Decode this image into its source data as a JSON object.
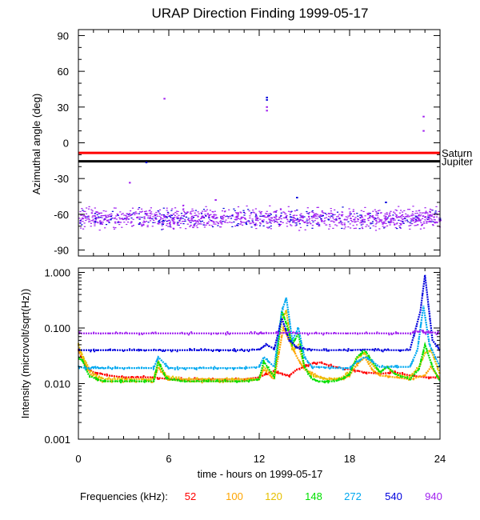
{
  "chart_data": [
    {
      "type": "scatter",
      "panel": "top",
      "title": "URAP Direction Finding  1999-05-17",
      "ylabel": "Azimuthal angle (deg)",
      "xlim": [
        0,
        24
      ],
      "ylim": [
        -95,
        95
      ],
      "ytick_labels": [
        "90",
        "60",
        "30",
        "0",
        "-30",
        "-60",
        "-90"
      ],
      "ytick_values": [
        90,
        60,
        30,
        0,
        -30,
        -60,
        -90
      ],
      "reference_lines": [
        {
          "name": "Saturn",
          "value": -8.5,
          "color": "#ff0000"
        },
        {
          "name": "Jupiter",
          "value": -15.5,
          "color": "#000000"
        }
      ],
      "band": {
        "center": -63,
        "spread": 5,
        "colors": [
          "#a020f0",
          "#0000dd"
        ]
      },
      "outliers": [
        {
          "x": 3.4,
          "y": -33.5,
          "color": "#a020f0"
        },
        {
          "x": 4.5,
          "y": -16.5,
          "color": "#0000dd"
        },
        {
          "x": 5.7,
          "y": 37,
          "color": "#a020f0"
        },
        {
          "x": 12.5,
          "y": 38,
          "color": "#0000dd"
        },
        {
          "x": 12.5,
          "y": 36,
          "color": "#0000dd"
        },
        {
          "x": 12.5,
          "y": 30,
          "color": "#a020f0"
        },
        {
          "x": 12.5,
          "y": 27,
          "color": "#a020f0"
        },
        {
          "x": 22.9,
          "y": 22,
          "color": "#a020f0"
        },
        {
          "x": 22.9,
          "y": 10,
          "color": "#a020f0"
        },
        {
          "x": 14.5,
          "y": -46,
          "color": "#0000dd"
        },
        {
          "x": 9.1,
          "y": -48,
          "color": "#a020f0"
        },
        {
          "x": 20.4,
          "y": -50,
          "color": "#0000dd"
        }
      ]
    },
    {
      "type": "line",
      "panel": "bottom",
      "ylabel": "Intensity (microvolt/sqrt(Hz))",
      "xlabel": "time - hours on 1999-05-17",
      "yscale": "log",
      "xlim": [
        0,
        24
      ],
      "ylim": [
        0.001,
        1.2
      ],
      "xtick_labels": [
        "0",
        "6",
        "12",
        "18",
        "24"
      ],
      "xtick_values": [
        0,
        6,
        12,
        18,
        24
      ],
      "ytick_labels": [
        "1.000",
        "0.100",
        "0.010",
        "0.001"
      ],
      "ytick_values": [
        1.0,
        0.1,
        0.01,
        0.001
      ],
      "legend_label": "Frequencies (kHz):",
      "series": [
        {
          "name": "52",
          "color": "#ff0000",
          "x": [
            0,
            0.5,
            1,
            1.5,
            2,
            3,
            4,
            5,
            6,
            7,
            8,
            9,
            10,
            11,
            12,
            12.5,
            13,
            13.5,
            14,
            14.5,
            15,
            15.5,
            16,
            17,
            18,
            19,
            20,
            21,
            22,
            23,
            23.5,
            24
          ],
          "y": [
            0.04,
            0.02,
            0.016,
            0.015,
            0.014,
            0.013,
            0.013,
            0.013,
            0.012,
            0.012,
            0.012,
            0.012,
            0.012,
            0.012,
            0.013,
            0.015,
            0.017,
            0.015,
            0.014,
            0.018,
            0.02,
            0.023,
            0.024,
            0.02,
            0.018,
            0.016,
            0.015,
            0.016,
            0.014,
            0.013,
            0.013,
            0.013
          ]
        },
        {
          "name": "100",
          "color": "#ffa500",
          "x": [
            0,
            0.4,
            0.8,
            1.2,
            1.6,
            2,
            3,
            4,
            5,
            5.3,
            5.8,
            6,
            7,
            8,
            9,
            10,
            11,
            12,
            12.3,
            13,
            13.6,
            14,
            14.5,
            15,
            15.5,
            16,
            16.5,
            17,
            17.5,
            18,
            18.5,
            19,
            19.5,
            20,
            21,
            22,
            23,
            23.4,
            24
          ],
          "y": [
            0.04,
            0.025,
            0.015,
            0.012,
            0.011,
            0.011,
            0.011,
            0.011,
            0.011,
            0.02,
            0.013,
            0.012,
            0.011,
            0.011,
            0.011,
            0.011,
            0.011,
            0.012,
            0.018,
            0.012,
            0.1,
            0.06,
            0.03,
            0.018,
            0.015,
            0.013,
            0.012,
            0.012,
            0.012,
            0.014,
            0.022,
            0.03,
            0.018,
            0.014,
            0.013,
            0.012,
            0.014,
            0.02,
            0.012
          ]
        },
        {
          "name": "120",
          "color": "#e6c000",
          "x": [
            0,
            0.3,
            0.8,
            1.3,
            1.8,
            2.5,
            3,
            4,
            5,
            5.3,
            5.8,
            6,
            7,
            8,
            9,
            10,
            11,
            12,
            12.3,
            13,
            13.5,
            13.8,
            14.2,
            14.6,
            15,
            15.5,
            16,
            16.5,
            17,
            17.5,
            18,
            18.5,
            19,
            19.5,
            20,
            20.5,
            21,
            22,
            22.6,
            23,
            23.4,
            24
          ],
          "y": [
            0.05,
            0.03,
            0.017,
            0.013,
            0.012,
            0.012,
            0.012,
            0.012,
            0.012,
            0.025,
            0.014,
            0.013,
            0.012,
            0.012,
            0.012,
            0.012,
            0.012,
            0.012,
            0.02,
            0.014,
            0.15,
            0.2,
            0.04,
            0.05,
            0.02,
            0.014,
            0.013,
            0.012,
            0.012,
            0.013,
            0.016,
            0.03,
            0.035,
            0.022,
            0.016,
            0.02,
            0.015,
            0.013,
            0.02,
            0.035,
            0.04,
            0.015
          ]
        },
        {
          "name": "148",
          "color": "#00e000",
          "x": [
            0,
            0.3,
            0.7,
            1.2,
            1.7,
            2.5,
            3,
            4,
            5,
            5.3,
            5.8,
            6,
            7,
            8,
            9,
            10,
            11,
            12,
            12.3,
            13,
            13.5,
            13.8,
            14.2,
            14.6,
            15,
            15.5,
            16,
            16.5,
            17,
            17.5,
            18,
            18.5,
            19,
            19.5,
            20,
            20.5,
            21,
            22,
            22.6,
            23,
            23.5,
            24
          ],
          "y": [
            0.03,
            0.025,
            0.014,
            0.012,
            0.011,
            0.011,
            0.011,
            0.011,
            0.011,
            0.025,
            0.013,
            0.012,
            0.011,
            0.011,
            0.011,
            0.011,
            0.011,
            0.012,
            0.025,
            0.013,
            0.2,
            0.12,
            0.05,
            0.08,
            0.02,
            0.012,
            0.011,
            0.011,
            0.011,
            0.012,
            0.015,
            0.03,
            0.04,
            0.025,
            0.016,
            0.02,
            0.015,
            0.012,
            0.018,
            0.05,
            0.02,
            0.011
          ]
        },
        {
          "name": "272",
          "color": "#00a8f0",
          "x": [
            0,
            0.5,
            1,
            1.5,
            2,
            3,
            4,
            5,
            5.3,
            6,
            7,
            8,
            9,
            10,
            11,
            12,
            12.3,
            13,
            13.5,
            13.8,
            14.2,
            14.6,
            15,
            15.5,
            16,
            17,
            18,
            18.5,
            19,
            19.5,
            20,
            21,
            22,
            22.5,
            22.9,
            23.3,
            24
          ],
          "y": [
            0.02,
            0.019,
            0.019,
            0.019,
            0.019,
            0.019,
            0.019,
            0.019,
            0.03,
            0.019,
            0.019,
            0.019,
            0.019,
            0.019,
            0.019,
            0.02,
            0.03,
            0.02,
            0.2,
            0.35,
            0.06,
            0.1,
            0.03,
            0.02,
            0.02,
            0.019,
            0.019,
            0.025,
            0.03,
            0.025,
            0.02,
            0.02,
            0.02,
            0.04,
            0.25,
            0.05,
            0.02
          ]
        },
        {
          "name": "540",
          "color": "#0000dd",
          "x": [
            0,
            1,
            2,
            3,
            4,
            5,
            6,
            7,
            8,
            9,
            10,
            11,
            12,
            12.5,
            13,
            13.5,
            14,
            14.5,
            15,
            16,
            17,
            18,
            19,
            20,
            21,
            22,
            22.7,
            23,
            23.5,
            24
          ],
          "y": [
            0.04,
            0.04,
            0.04,
            0.04,
            0.04,
            0.04,
            0.04,
            0.04,
            0.04,
            0.04,
            0.04,
            0.04,
            0.041,
            0.05,
            0.042,
            0.15,
            0.06,
            0.045,
            0.042,
            0.04,
            0.04,
            0.04,
            0.041,
            0.04,
            0.04,
            0.04,
            0.2,
            0.9,
            0.06,
            0.04
          ]
        },
        {
          "name": "940",
          "color": "#a020f0",
          "x": [
            0,
            2,
            4,
            6,
            8,
            10,
            12,
            13,
            14,
            15,
            16,
            18,
            20,
            22,
            22.8,
            23,
            23.3,
            24
          ],
          "y": [
            0.08,
            0.08,
            0.08,
            0.08,
            0.08,
            0.08,
            0.08,
            0.081,
            0.082,
            0.08,
            0.08,
            0.08,
            0.08,
            0.08,
            0.09,
            0.08,
            0.085,
            0.08
          ]
        }
      ]
    }
  ]
}
